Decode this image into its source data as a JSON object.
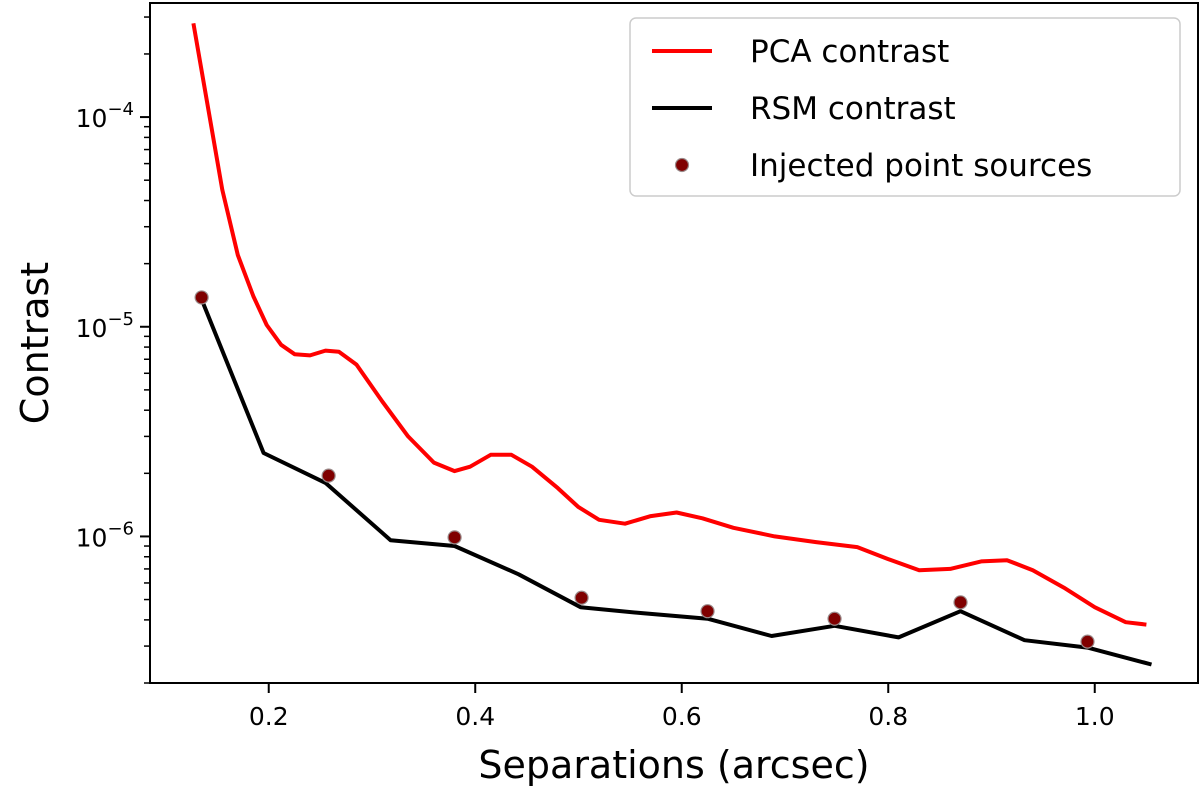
{
  "chart_data": {
    "type": "line",
    "xlabel": "Separations (arcsec)",
    "ylabel": "Contrast",
    "x_ticks": [
      0.2,
      0.4,
      0.6,
      0.8,
      1.0
    ],
    "x_tick_labels": [
      "0.2",
      "0.4",
      "0.6",
      "0.8",
      "1.0"
    ],
    "xlim": [
      0.085,
      1.1
    ],
    "y_scale": "log",
    "ylim": [
      2e-07,
      0.00035
    ],
    "y_major_ticks": [
      {
        "value": 1e-06,
        "base": "10",
        "exp": "−6"
      },
      {
        "value": 1e-05,
        "base": "10",
        "exp": "−5"
      },
      {
        "value": 0.0001,
        "base": "10",
        "exp": "−4"
      }
    ],
    "legend_position": "top-right",
    "series": [
      {
        "name": "PCA contrast",
        "kind": "line",
        "color": "#ff0000",
        "x": [
          0.127,
          0.14,
          0.155,
          0.17,
          0.185,
          0.198,
          0.212,
          0.225,
          0.24,
          0.255,
          0.268,
          0.285,
          0.31,
          0.335,
          0.36,
          0.38,
          0.395,
          0.415,
          0.435,
          0.455,
          0.48,
          0.5,
          0.52,
          0.545,
          0.57,
          0.595,
          0.62,
          0.65,
          0.69,
          0.73,
          0.77,
          0.8,
          0.83,
          0.86,
          0.89,
          0.915,
          0.94,
          0.97,
          1.0,
          1.03,
          1.05
        ],
        "y": [
          0.00028,
          0.00012,
          4.5e-05,
          2.2e-05,
          1.4e-05,
          1.02e-05,
          8.2e-06,
          7.4e-06,
          7.3e-06,
          7.7e-06,
          7.6e-06,
          6.6e-06,
          4.4e-06,
          3e-06,
          2.25e-06,
          2.05e-06,
          2.15e-06,
          2.45e-06,
          2.45e-06,
          2.15e-06,
          1.7e-06,
          1.38e-06,
          1.2e-06,
          1.15e-06,
          1.25e-06,
          1.3e-06,
          1.22e-06,
          1.1e-06,
          1e-06,
          9.4e-07,
          8.9e-07,
          7.8e-07,
          6.9e-07,
          7e-07,
          7.6e-07,
          7.7e-07,
          6.9e-07,
          5.7e-07,
          4.6e-07,
          3.9e-07,
          3.8e-07
        ]
      },
      {
        "name": "RSM contrast",
        "kind": "line",
        "color": "#000000",
        "x": [
          0.135,
          0.195,
          0.255,
          0.318,
          0.38,
          0.442,
          0.502,
          0.563,
          0.625,
          0.687,
          0.748,
          0.81,
          0.87,
          0.932,
          0.993,
          1.055
        ],
        "y": [
          1.35e-05,
          2.5e-06,
          1.8e-06,
          9.6e-07,
          9e-07,
          6.6e-07,
          4.6e-07,
          4.3e-07,
          4.05e-07,
          3.35e-07,
          3.75e-07,
          3.3e-07,
          4.4e-07,
          3.2e-07,
          2.95e-07,
          2.45e-07
        ]
      },
      {
        "name": "Injected point sources",
        "kind": "scatter",
        "color": "#800000",
        "x": [
          0.135,
          0.258,
          0.38,
          0.503,
          0.625,
          0.748,
          0.87,
          0.993
        ],
        "y": [
          1.38e-05,
          1.95e-06,
          9.9e-07,
          5.1e-07,
          4.4e-07,
          4.05e-07,
          4.85e-07,
          3.15e-07
        ]
      }
    ]
  }
}
